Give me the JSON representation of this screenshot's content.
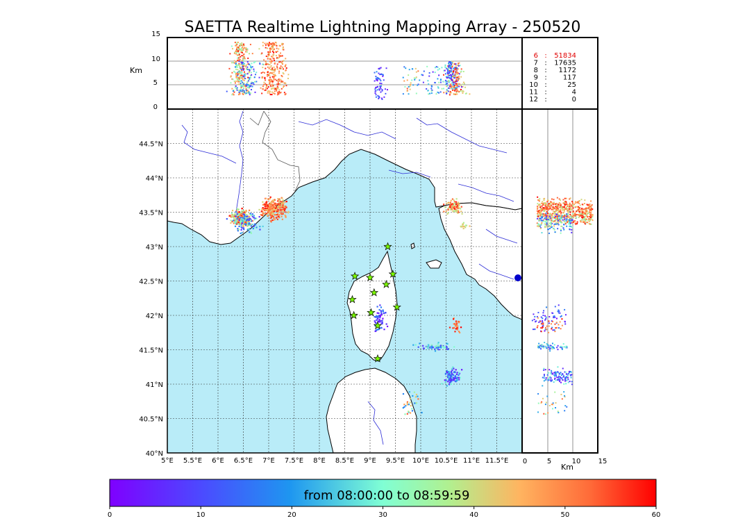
{
  "title": "SAETTA Realtime Lightning Mapping Array - 250520",
  "time_range_label": "from 08:00:00 to 08:59:59",
  "altitude_unit": "Km",
  "lon_ticks": [
    "5°E",
    "5.5°E",
    "6°E",
    "6.5°E",
    "7°E",
    "7.5°E",
    "8°E",
    "8.5°E",
    "9°E",
    "9.5°E",
    "10°E",
    "10.5°E",
    "11°E",
    "11.5°E"
  ],
  "lat_ticks": [
    "40°N",
    "40.5°N",
    "41°N",
    "41.5°N",
    "42°N",
    "42.5°N",
    "43°N",
    "43.5°N",
    "44°N",
    "44.5°N"
  ],
  "alt_ticks": [
    "0",
    "5",
    "10",
    "15"
  ],
  "colorbar_ticks": [
    "0",
    "10",
    "20",
    "30",
    "40",
    "50",
    "60"
  ],
  "station_counts": [
    {
      "stations": "6",
      "sep": ":",
      "count": "51834",
      "highlight": true
    },
    {
      "stations": "7",
      "sep": ":",
      "count": "17635",
      "highlight": false
    },
    {
      "stations": "8",
      "sep": ":",
      "count": "1172",
      "highlight": false
    },
    {
      "stations": "9",
      "sep": ":",
      "count": "117",
      "highlight": false
    },
    {
      "stations": "10",
      "sep": ":",
      "count": "25",
      "highlight": false
    },
    {
      "stations": "11",
      "sep": ":",
      "count": "4",
      "highlight": false
    },
    {
      "stations": "12",
      "sep": ":",
      "count": "0",
      "highlight": false
    }
  ],
  "colors": {
    "sea": "#b9ecf8",
    "land": "#ffffff",
    "rivers": "#2b2bd6",
    "borders": "#555555",
    "highlight_count": "#e00000",
    "station_marker": "#7cfc00"
  },
  "map_extent": {
    "lon": [
      5,
      12
    ],
    "lat": [
      40,
      45
    ],
    "alt_km": [
      0,
      15
    ]
  },
  "lightning_clusters": [
    {
      "lon": 6.45,
      "lat": 43.42,
      "spread_lon": 0.18,
      "spread_lat": 0.12,
      "n": 260,
      "time_min": [
        30,
        60
      ],
      "alt": [
        3,
        14
      ]
    },
    {
      "lon": 7.1,
      "lat": 43.55,
      "spread_lon": 0.25,
      "spread_lat": 0.15,
      "n": 300,
      "time_min": [
        40,
        60
      ],
      "alt": [
        3,
        14
      ]
    },
    {
      "lon": 6.55,
      "lat": 43.35,
      "spread_lon": 0.3,
      "spread_lat": 0.15,
      "n": 120,
      "time_min": [
        5,
        35
      ],
      "alt": [
        3,
        10
      ]
    },
    {
      "lon": 10.65,
      "lat": 43.58,
      "spread_lon": 0.18,
      "spread_lat": 0.1,
      "n": 90,
      "time_min": [
        35,
        60
      ],
      "alt": [
        3,
        10
      ]
    },
    {
      "lon": 10.85,
      "lat": 43.3,
      "spread_lon": 0.12,
      "spread_lat": 0.06,
      "n": 15,
      "time_min": [
        30,
        45
      ],
      "alt": [
        3,
        8
      ]
    },
    {
      "lon": 9.2,
      "lat": 41.95,
      "spread_lon": 0.12,
      "spread_lat": 0.2,
      "n": 60,
      "time_min": [
        0,
        20
      ],
      "alt": [
        2,
        9
      ]
    },
    {
      "lon": 10.3,
      "lat": 41.55,
      "spread_lon": 0.35,
      "spread_lat": 0.06,
      "n": 60,
      "time_min": [
        5,
        35
      ],
      "alt": [
        3,
        9
      ]
    },
    {
      "lon": 10.6,
      "lat": 41.1,
      "spread_lon": 0.18,
      "spread_lat": 0.12,
      "n": 110,
      "time_min": [
        0,
        30
      ],
      "alt": [
        4,
        10
      ]
    },
    {
      "lon": 10.7,
      "lat": 41.85,
      "spread_lon": 0.1,
      "spread_lat": 0.12,
      "n": 30,
      "time_min": [
        45,
        60
      ],
      "alt": [
        3,
        8
      ]
    },
    {
      "lon": 9.8,
      "lat": 40.75,
      "spread_lon": 0.2,
      "spread_lat": 0.2,
      "n": 30,
      "time_min": [
        15,
        55
      ],
      "alt": [
        3,
        9
      ]
    }
  ],
  "stations": [
    {
      "lon": 9.35,
      "lat": 43.0
    },
    {
      "lon": 8.7,
      "lat": 42.57
    },
    {
      "lon": 9.0,
      "lat": 42.55
    },
    {
      "lon": 9.45,
      "lat": 42.6
    },
    {
      "lon": 9.32,
      "lat": 42.45
    },
    {
      "lon": 9.08,
      "lat": 42.33
    },
    {
      "lon": 8.65,
      "lat": 42.23
    },
    {
      "lon": 9.53,
      "lat": 42.12
    },
    {
      "lon": 8.68,
      "lat": 42.0
    },
    {
      "lon": 9.02,
      "lat": 42.04
    },
    {
      "lon": 9.15,
      "lat": 41.85
    },
    {
      "lon": 9.15,
      "lat": 41.37
    }
  ]
}
